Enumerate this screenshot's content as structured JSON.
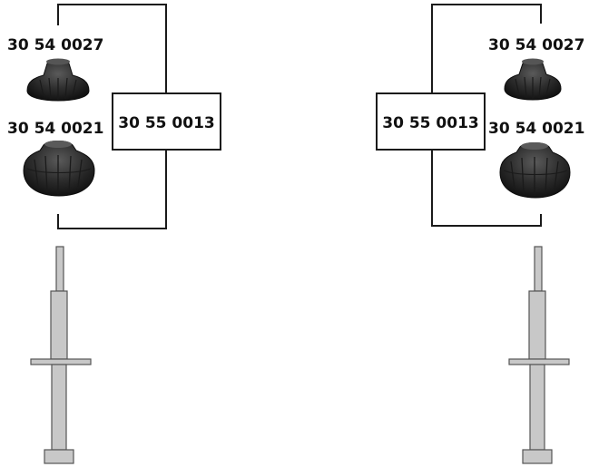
{
  "left_assembly": {
    "top_part_number": "30 54 0027",
    "bottom_part_number": "30 54 0021",
    "kit_part_number": "30 55 0013"
  },
  "right_assembly": {
    "top_part_number": "30 54 0027",
    "bottom_part_number": "30 54 0021",
    "kit_part_number": "30 55 0013"
  },
  "colors": {
    "rubber": "#2a2a2a",
    "shock_body": "#c8c8c8",
    "line": "#1a1a1a"
  }
}
